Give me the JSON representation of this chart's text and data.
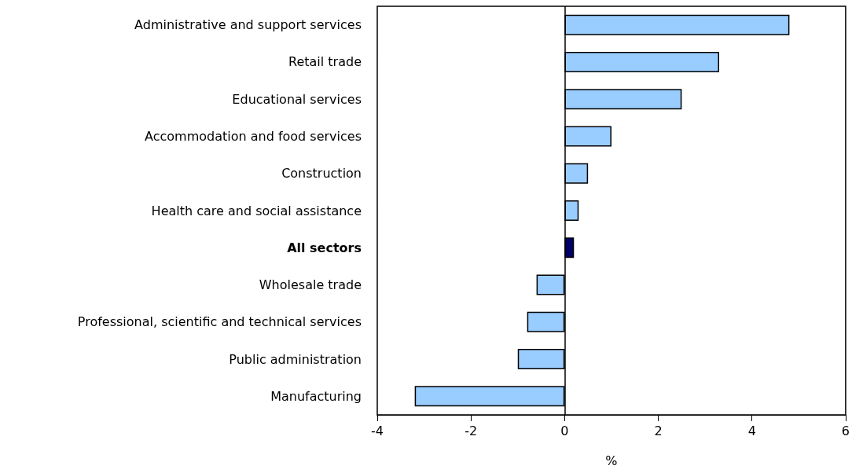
{
  "chart_data": {
    "type": "bar",
    "orientation": "horizontal",
    "xlabel": "%",
    "categories": [
      "Administrative and support services",
      "Retail trade",
      "Educational services",
      "Accommodation and food services",
      "Construction",
      "Health care and social assistance",
      "All sectors",
      "Wholesale trade",
      "Professional, scientific and technical services",
      "Public administration",
      "Manufacturing"
    ],
    "values": [
      4.8,
      3.3,
      2.5,
      1.0,
      0.5,
      0.3,
      0.2,
      -0.6,
      -0.8,
      -1.0,
      -3.2
    ],
    "colors": [
      "#99ccff",
      "#99ccff",
      "#99ccff",
      "#99ccff",
      "#99ccff",
      "#99ccff",
      "#000066",
      "#99ccff",
      "#99ccff",
      "#99ccff",
      "#99ccff"
    ],
    "xlim": [
      -4,
      6
    ],
    "xticks": [
      -4,
      -2,
      0,
      2,
      4,
      6
    ],
    "ref_lines": [
      {
        "axis": "x",
        "value": 0,
        "color": "#000000"
      }
    ]
  }
}
